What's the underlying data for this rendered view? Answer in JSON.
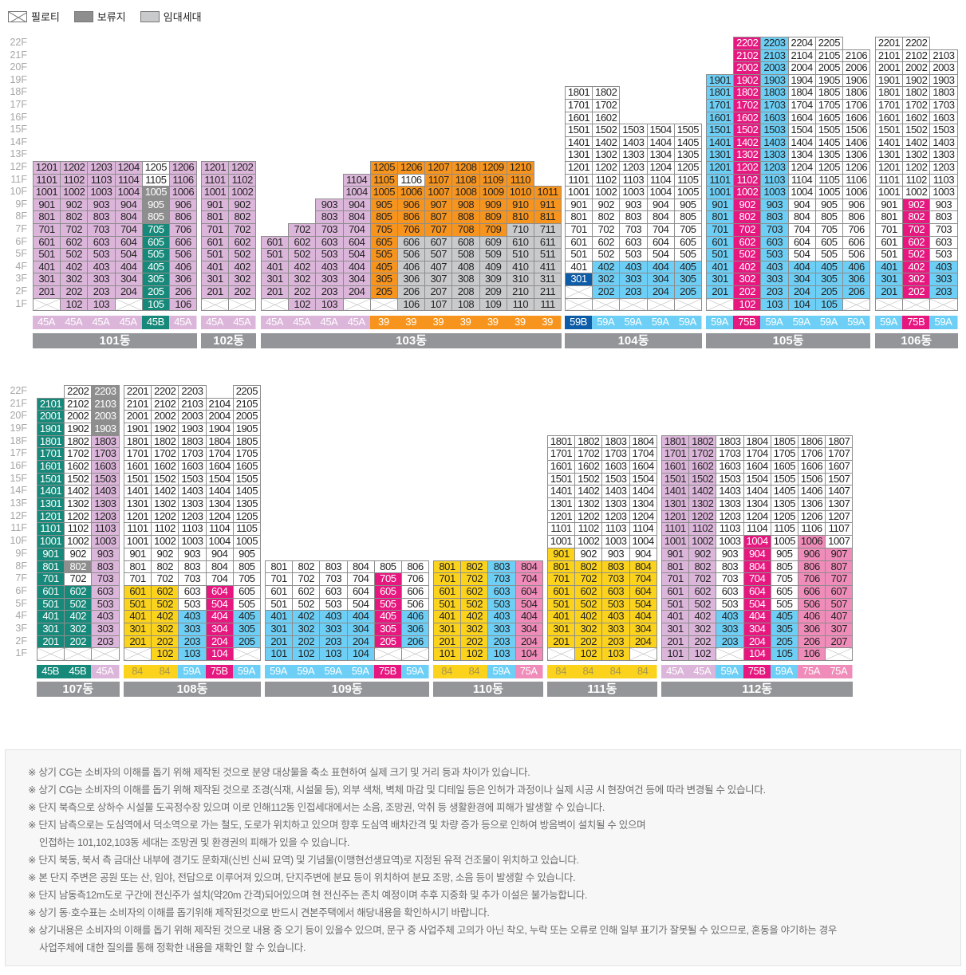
{
  "legend": [
    {
      "label": "필로티",
      "kind": "X"
    },
    {
      "label": "보류지",
      "kind": "G"
    },
    {
      "label": "임대세대",
      "kind": "R"
    }
  ],
  "colors": {
    "L": "#dcb6da",
    "O": "#f7941d",
    "R": "#c9cacb",
    "G": "#8e8e8e",
    "T": "#17897a",
    "B": "#6dcff6",
    "D": "#0d5ca8",
    "P": "#e6187f",
    "PL": "#f08cb9",
    "Y": "#fcd31c",
    "W": "#ffffff",
    "X": "#ffffff"
  },
  "floor_labels": [
    "22F",
    "21F",
    "20F",
    "19F",
    "18F",
    "17F",
    "16F",
    "15F",
    "14F",
    "13F",
    "12F",
    "11F",
    "10F",
    "9F",
    "8F",
    "7F",
    "6F",
    "5F",
    "4F",
    "3F",
    "2F",
    "1F"
  ],
  "sections": [
    {
      "buildings": [
        {
          "name": "101동",
          "cols": [
            {
              "line": 1,
              "type": "45A",
              "tc": "L",
              "segs": "X1 L12"
            },
            {
              "line": 2,
              "type": "45A",
              "tc": "L",
              "segs": "L12"
            },
            {
              "line": 3,
              "type": "45A",
              "tc": "L",
              "segs": "L12"
            },
            {
              "line": 4,
              "type": "45A",
              "tc": "L",
              "segs": "X1 L12"
            },
            {
              "line": 5,
              "type": "45B",
              "tc": "T",
              "segs": "T7 G10 W12"
            },
            {
              "line": 6,
              "type": "45A",
              "tc": "L",
              "segs": "L12"
            }
          ]
        },
        {
          "name": "102동",
          "cols": [
            {
              "line": 1,
              "type": "45A",
              "tc": "L",
              "segs": "X1 L12"
            },
            {
              "line": 2,
              "type": "45A",
              "tc": "L",
              "segs": "X1 L12"
            }
          ]
        },
        {
          "name": "103동",
          "cols": [
            {
              "line": 1,
              "type": "45A",
              "tc": "L",
              "segs": "X1 L6"
            },
            {
              "line": 2,
              "type": "45A",
              "tc": "L",
              "segs": "L7"
            },
            {
              "line": 3,
              "type": "45A",
              "tc": "L",
              "segs": "L9"
            },
            {
              "line": 4,
              "type": "45A",
              "tc": "L",
              "segs": "X1 L11"
            },
            {
              "line": 5,
              "type": "39",
              "tc": "O",
              "segs": "X1 O12"
            },
            {
              "line": 6,
              "type": "39",
              "tc": "O",
              "segs": "R6 O10 W11 O12"
            },
            {
              "line": 7,
              "type": "39",
              "tc": "O",
              "segs": "R6 O12"
            },
            {
              "line": 8,
              "type": "39",
              "tc": "O",
              "segs": "R6 O12"
            },
            {
              "line": 9,
              "type": "39",
              "tc": "O",
              "segs": "R6 O12"
            },
            {
              "line": 10,
              "type": "39",
              "tc": "O",
              "segs": "R7 O12"
            },
            {
              "line": 11,
              "type": "39",
              "tc": "O",
              "segs": "R7 O10"
            }
          ]
        },
        {
          "name": "104동",
          "cols": [
            {
              "line": 1,
              "type": "59B",
              "tc": "D",
              "segs": "X2 D3 W18"
            },
            {
              "line": 2,
              "type": "59A",
              "tc": "B",
              "segs": "X1 B4 W18"
            },
            {
              "line": 3,
              "type": "59A",
              "tc": "B",
              "segs": "X1 B4 W15"
            },
            {
              "line": 4,
              "type": "59A",
              "tc": "B",
              "segs": "X1 B4 W15"
            },
            {
              "line": 5,
              "type": "59A",
              "tc": "B",
              "segs": "X1 B4 W15"
            }
          ]
        },
        {
          "name": "105동",
          "cols": [
            {
              "line": 1,
              "type": "59A",
              "tc": "B",
              "segs": "X1 B19"
            },
            {
              "line": 2,
              "type": "75B",
              "tc": "P",
              "segs": "P22"
            },
            {
              "line": 3,
              "type": "59A",
              "tc": "B",
              "segs": "B22"
            },
            {
              "line": 4,
              "type": "59A",
              "tc": "B",
              "segs": "B4 W22"
            },
            {
              "line": 5,
              "type": "59A",
              "tc": "B",
              "segs": "B4 W22"
            },
            {
              "line": 6,
              "type": "59A",
              "tc": "B",
              "segs": "X1 B4 W21"
            }
          ]
        },
        {
          "name": "106동",
          "cols": [
            {
              "line": 1,
              "type": "59A",
              "tc": "B",
              "segs": "X1 B4 W22"
            },
            {
              "line": 2,
              "type": "75B",
              "tc": "P",
              "segs": "X1 P9 W22"
            },
            {
              "line": 3,
              "type": "59A",
              "tc": "B",
              "segs": "X1 B4 W21"
            }
          ]
        }
      ]
    },
    {
      "buildings": [
        {
          "name": "107동",
          "cols": [
            {
              "line": 1,
              "type": "45B",
              "tc": "T",
              "segs": "X1 T21"
            },
            {
              "line": 2,
              "type": "45B",
              "tc": "T",
              "segs": "X1 T6 W7 G8 W22"
            },
            {
              "line": 3,
              "type": "45A",
              "tc": "L",
              "segs": "X1 L18 G22"
            }
          ]
        },
        {
          "name": "108동",
          "cols": [
            {
              "line": 1,
              "type": "84",
              "tc": "Y",
              "segs": "X1 Y6 W22"
            },
            {
              "line": 2,
              "type": "84",
              "tc": "Y",
              "segs": "Y6 W22"
            },
            {
              "line": 3,
              "type": "59A",
              "tc": "B",
              "segs": "B4 W22"
            },
            {
              "line": 4,
              "type": "75B",
              "tc": "P",
              "segs": "P6 W21"
            },
            {
              "line": 5,
              "type": "59A",
              "tc": "B",
              "segs": "X1 B4 W22"
            }
          ]
        },
        {
          "name": "109동",
          "cols": [
            {
              "line": 1,
              "type": "59A",
              "tc": "B",
              "segs": "B4 W8"
            },
            {
              "line": 2,
              "type": "59A",
              "tc": "B",
              "segs": "B4 W8"
            },
            {
              "line": 3,
              "type": "59A",
              "tc": "B",
              "segs": "B4 W8"
            },
            {
              "line": 4,
              "type": "59A",
              "tc": "B",
              "segs": "B4 W8"
            },
            {
              "line": 5,
              "type": "75B",
              "tc": "P",
              "segs": "X1 P7 W8"
            },
            {
              "line": 6,
              "type": "59A",
              "tc": "B",
              "segs": "X1 B4 W8"
            }
          ]
        },
        {
          "name": "110동",
          "cols": [
            {
              "line": 1,
              "type": "84",
              "tc": "Y",
              "segs": "Y8"
            },
            {
              "line": 2,
              "type": "84",
              "tc": "Y",
              "segs": "Y8"
            },
            {
              "line": 3,
              "type": "59A",
              "tc": "B",
              "segs": "B8"
            },
            {
              "line": 4,
              "type": "75A",
              "tc": "PL",
              "segs": "PL8"
            }
          ]
        },
        {
          "name": "111동",
          "cols": [
            {
              "line": 1,
              "type": "84",
              "tc": "Y",
              "segs": "X1 Y9 W18"
            },
            {
              "line": 2,
              "type": "84",
              "tc": "Y",
              "segs": "Y8 W18"
            },
            {
              "line": 3,
              "type": "84",
              "tc": "Y",
              "segs": "Y8 W18"
            },
            {
              "line": 4,
              "type": "84",
              "tc": "Y",
              "segs": "X1 Y8 W18"
            }
          ]
        },
        {
          "name": "112동",
          "cols": [
            {
              "line": 1,
              "type": "45A",
              "tc": "L",
              "segs": "L18"
            },
            {
              "line": 2,
              "type": "45A",
              "tc": "L",
              "segs": "L18"
            },
            {
              "line": 3,
              "type": "59A",
              "tc": "B",
              "segs": "X1 B4 W18"
            },
            {
              "line": 4,
              "type": "75B",
              "tc": "P",
              "segs": "P10 W18"
            },
            {
              "line": 5,
              "type": "59A",
              "tc": "B",
              "segs": "B4 W18"
            },
            {
              "line": 6,
              "type": "75A",
              "tc": "PL",
              "segs": "PL10 W18"
            },
            {
              "line": 7,
              "type": "75A",
              "tc": "PL",
              "segs": "X1 PL9 W18"
            }
          ]
        }
      ]
    }
  ],
  "notes": [
    [
      "※ 상기 CG는 소비자의 이해를 돕기 위해 제작된 것으로 분양 대상물을 축소 표현하여 실제 크기 및 거리 등과 차이가 있습니다."
    ],
    [
      "※ 상기 CG는 소비자의 이해를 돕기 위해 제작된 것으로 조경(식재, 시설물 등), 외부 색채, 벽체 마감 및 디테일 등은 인허가 과정이나 실제 시공 시 현장여건 등에 따라 변경될 수 있습니다."
    ],
    [
      "※ 단지 북측으로 상하수 시설물 도곡정수장 있으며 이로 인해112동 인접세대에서는 소음, 조망권, 악취 등 생활환경에 피해가 발생할 수 있습니다."
    ],
    [
      "※ 단지 남측으로는 도심역에서 덕소역으로 가는 철도, 도로가 위치하고 있으며 향후 도심역 배차간격 및 차량 증가 등으로 인하여 방음벽이 설치될 수 있으며",
      "인접하는 101,102,103동 세대는 조망권 및 환경권의 피해가 있을 수 있습니다."
    ],
    [
      "※ 단지 북동, 북서 측 금대산 내부에 경기도 문화재(신빈 신씨 묘역) 및 기념물(이맹현선생묘역)로 지정된 유적 건조물이 위치하고 있습니다."
    ],
    [
      "※ 본 단지 주변은 공원 또는 산, 임야, 전답으로 이루어져 있으며, 단지주변에 분묘 등이 위치하여 분묘 조망, 소음 등이 발생할 수 있습니다."
    ],
    [
      "※ 단지 남동측12m도로 구간에 전신주가 설치(약20m 간격)되어있으며 현 전신주는 존치 예정이며 추후 지중화 및 추가 이설은 불가능합니다."
    ],
    [
      "※ 상기 동·호수표는 소비자의 이해를 돕기위해 제작된것으로 반드시 견본주택에서 해당내용을 확인하시기 바랍니다."
    ],
    [
      "※ 상기내용은 소비자의 이해를 돕기 위해 제작된 것으로 내용 중 오기 등이 있을수 있으며, 문구 중 사업주체 고의가 아닌 착오, 누락 또는 오류로 인해 일부 표기가 잘못될 수 있으므로, 혼동을 야기하는 경우",
      "사업주체에 대한 질의를 통해 정확한 내용을 재확인 할 수 있습니다."
    ]
  ]
}
